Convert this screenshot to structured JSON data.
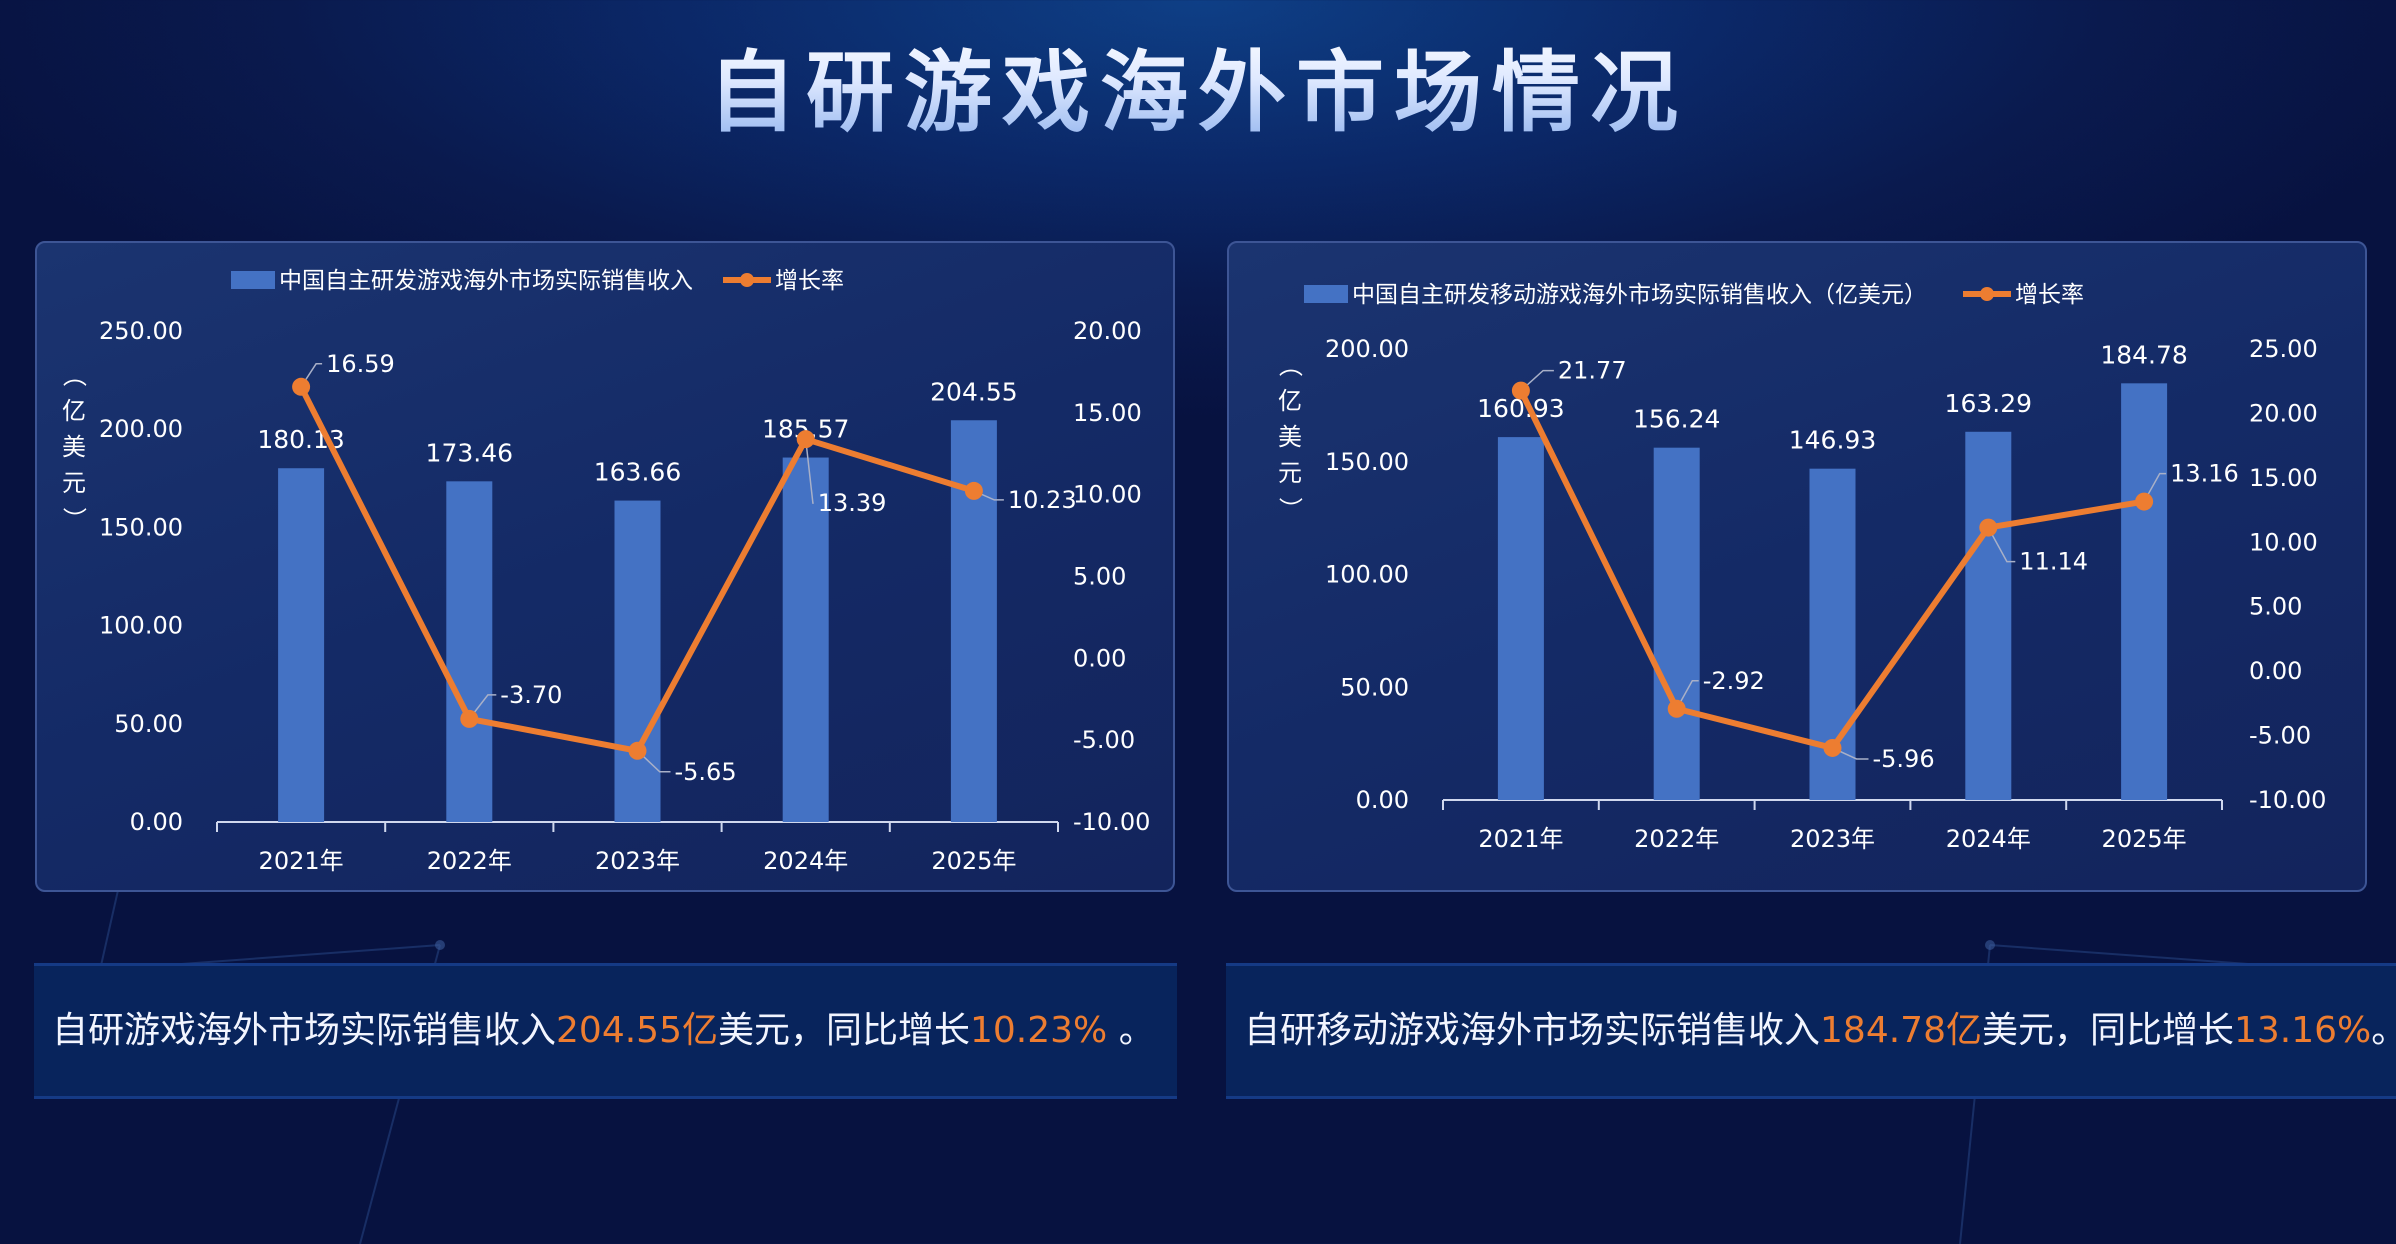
{
  "title": "自研游戏海外市场情况",
  "colors": {
    "bar": "#4472c4",
    "line": "#ed7d31",
    "highlight": "#ed7d31"
  },
  "chart_data": [
    {
      "type": "bar+line",
      "legend": {
        "bar": "中国自主研发游戏海外市场实际销售收入",
        "line": "增长率",
        "position": "top"
      },
      "ylabel": "（亿美元）",
      "categories": [
        "2021年",
        "2022年",
        "2023年",
        "2024年",
        "2025年"
      ],
      "series": [
        {
          "name": "中国自主研发游戏海外市场实际销售收入",
          "type": "bar",
          "axis": "left",
          "values": [
            180.13,
            173.46,
            163.66,
            185.57,
            204.55
          ],
          "labels": [
            "180.13",
            "173.46",
            "163.66",
            "185.57",
            "204.55"
          ]
        },
        {
          "name": "增长率",
          "type": "line",
          "axis": "right",
          "values": [
            16.59,
            -3.7,
            -5.65,
            13.39,
            10.23
          ],
          "labels": [
            "16.59",
            "-3.70",
            "-5.65",
            "13.39",
            "10.23"
          ]
        }
      ],
      "ylim": [
        0,
        250
      ],
      "yticks": [
        "0.00",
        "50.00",
        "100.00",
        "150.00",
        "200.00",
        "250.00"
      ],
      "y2lim": [
        -10,
        20
      ],
      "y2ticks": [
        "-10.00",
        "-5.00",
        "0.00",
        "5.00",
        "10.00",
        "15.00",
        "20.00"
      ],
      "grid": false
    },
    {
      "type": "bar+line",
      "legend": {
        "bar": "中国自主研发移动游戏海外市场实际销售收入（亿美元）",
        "line": "增长率",
        "position": "top"
      },
      "ylabel": "（亿美元）",
      "categories": [
        "2021年",
        "2022年",
        "2023年",
        "2024年",
        "2025年"
      ],
      "series": [
        {
          "name": "中国自主研发移动游戏海外市场实际销售收入（亿美元）",
          "type": "bar",
          "axis": "left",
          "values": [
            160.93,
            156.24,
            146.93,
            163.29,
            184.78
          ],
          "labels": [
            "160.93",
            "156.24",
            "146.93",
            "163.29",
            "184.78"
          ]
        },
        {
          "name": "增长率",
          "type": "line",
          "axis": "right",
          "values": [
            21.77,
            -2.92,
            -5.96,
            11.14,
            13.16
          ],
          "labels": [
            "21.77",
            "-2.92",
            "-5.96",
            "11.14",
            "13.16"
          ]
        }
      ],
      "ylim": [
        0,
        200
      ],
      "yticks": [
        "0.00",
        "50.00",
        "100.00",
        "150.00",
        "200.00"
      ],
      "y2lim": [
        -10,
        25
      ],
      "y2ticks": [
        "-10.00",
        "-5.00",
        "0.00",
        "5.00",
        "10.00",
        "15.00",
        "20.00",
        "25.00"
      ],
      "grid": false
    }
  ],
  "notes": [
    {
      "pre": "自研游戏海外市场实际销售收入",
      "value": "204.55亿",
      "mid": "美元，同比增长",
      "rate": "10.23%",
      "post": " 。"
    },
    {
      "pre": "自研移动游戏海外市场实际销售收入",
      "value": "184.78亿",
      "mid": "美元，同比增长",
      "rate": "13.16%",
      "post": "。"
    }
  ]
}
